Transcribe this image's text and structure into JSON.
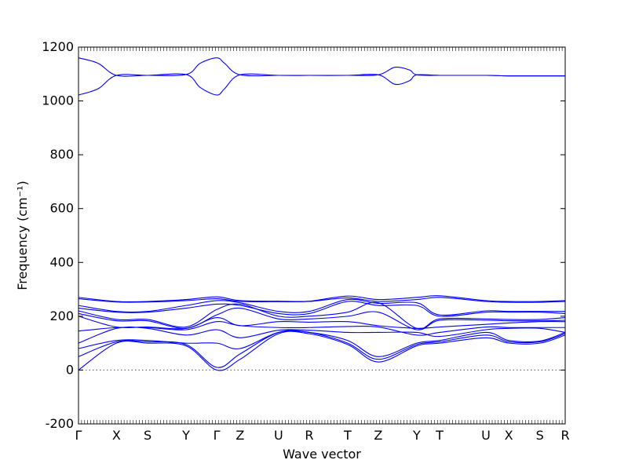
{
  "chart_data": {
    "type": "line",
    "xlabel": "Wave vector",
    "ylabel": "Frequency (cm⁻¹)",
    "ylim": [
      -200,
      1200
    ],
    "yticks": [
      -200,
      0,
      200,
      400,
      600,
      800,
      1000,
      1200
    ],
    "xlim": [
      0,
      1
    ],
    "grid": false,
    "zero_line": true,
    "line_color": "#0000ff",
    "high_points": [
      "Γ",
      "X",
      "S",
      "Y",
      "Γ",
      "Z",
      "U",
      "R",
      "T",
      "Z",
      "Y",
      "T",
      "U",
      "X",
      "S",
      "R"
    ],
    "high_point_positions": [
      0,
      0.078,
      0.142,
      0.221,
      0.284,
      0.332,
      0.411,
      0.474,
      0.553,
      0.616,
      0.695,
      0.742,
      0.837,
      0.884,
      0.948,
      1.0
    ],
    "series": [
      {
        "x": [
          0,
          0.04,
          0.078,
          0.142,
          0.221,
          0.25,
          0.284,
          0.3,
          0.332,
          0.411,
          0.474,
          0.553,
          0.616,
          0.65,
          0.68,
          0.695,
          0.742,
          0.837,
          0.884,
          0.948,
          1.0
        ],
        "y": [
          1160,
          1140,
          1095,
          1095,
          1098,
          1140,
          1160,
          1140,
          1097,
          1095,
          1095,
          1095,
          1097,
          1125,
          1115,
          1097,
          1095,
          1095,
          1093,
          1093,
          1093
        ]
      },
      {
        "x": [
          0,
          0.04,
          0.078,
          0.142,
          0.221,
          0.25,
          0.284,
          0.3,
          0.332,
          0.411,
          0.474,
          0.553,
          0.616,
          0.65,
          0.68,
          0.695,
          0.742,
          0.837,
          0.884,
          0.948,
          1.0
        ],
        "y": [
          1022,
          1045,
          1095,
          1095,
          1098,
          1050,
          1022,
          1045,
          1097,
          1095,
          1095,
          1095,
          1097,
          1062,
          1075,
          1097,
          1095,
          1095,
          1093,
          1093,
          1093
        ]
      },
      {
        "x": [
          0,
          0.078,
          0.142,
          0.221,
          0.284,
          0.332,
          0.411,
          0.474,
          0.553,
          0.616,
          0.695,
          0.742,
          0.837,
          0.884,
          0.948,
          1.0
        ],
        "y": [
          270,
          255,
          255,
          262,
          272,
          258,
          256,
          256,
          275,
          262,
          270,
          276,
          258,
          255,
          255,
          258
        ]
      },
      {
        "x": [
          0,
          0.078,
          0.142,
          0.221,
          0.284,
          0.332,
          0.411,
          0.474,
          0.553,
          0.616,
          0.695,
          0.742,
          0.837,
          0.884,
          0.948,
          1.0
        ],
        "y": [
          265,
          253,
          253,
          258,
          265,
          255,
          254,
          255,
          268,
          255,
          262,
          270,
          255,
          252,
          252,
          255
        ]
      },
      {
        "x": [
          0,
          0.078,
          0.142,
          0.221,
          0.284,
          0.332,
          0.411,
          0.474,
          0.553,
          0.616,
          0.695,
          0.742,
          0.837,
          0.884,
          0.948,
          1.0
        ],
        "y": [
          240,
          218,
          218,
          240,
          258,
          250,
          218,
          218,
          262,
          248,
          250,
          205,
          220,
          218,
          218,
          218
        ]
      },
      {
        "x": [
          0,
          0.078,
          0.142,
          0.221,
          0.284,
          0.332,
          0.411,
          0.474,
          0.553,
          0.616,
          0.695,
          0.742,
          0.837,
          0.884,
          0.948,
          1.0
        ],
        "y": [
          230,
          215,
          215,
          230,
          245,
          240,
          210,
          210,
          255,
          240,
          240,
          200,
          215,
          215,
          215,
          210
        ]
      },
      {
        "x": [
          0,
          0.078,
          0.142,
          0.221,
          0.284,
          0.332,
          0.411,
          0.474,
          0.553,
          0.616,
          0.695,
          0.742,
          0.837,
          0.884,
          0.948,
          1.0
        ],
        "y": [
          220,
          188,
          188,
          160,
          225,
          245,
          200,
          200,
          215,
          250,
          155,
          190,
          190,
          188,
          188,
          195
        ]
      },
      {
        "x": [
          0,
          0.078,
          0.142,
          0.221,
          0.284,
          0.332,
          0.411,
          0.474,
          0.553,
          0.616,
          0.695,
          0.742,
          0.837,
          0.884,
          0.948,
          1.0
        ],
        "y": [
          210,
          183,
          183,
          155,
          205,
          230,
          190,
          190,
          200,
          215,
          150,
          185,
          185,
          183,
          183,
          185
        ]
      },
      {
        "x": [
          0,
          0.078,
          0.142,
          0.221,
          0.284,
          0.332,
          0.411,
          0.474,
          0.553,
          0.616,
          0.695,
          0.742,
          0.837,
          0.884,
          0.948,
          1.0
        ],
        "y": [
          200,
          160,
          160,
          155,
          195,
          165,
          180,
          178,
          180,
          165,
          155,
          160,
          170,
          175,
          180,
          180
        ]
      },
      {
        "x": [
          0,
          0.078,
          0.142,
          0.221,
          0.284,
          0.332,
          0.411,
          0.474,
          0.553,
          0.616,
          0.695,
          0.742,
          0.837,
          0.884,
          0.948,
          1.0
        ],
        "y": [
          145,
          158,
          158,
          150,
          180,
          165,
          158,
          158,
          162,
          160,
          130,
          140,
          160,
          158,
          158,
          158
        ]
      },
      {
        "x": [
          0,
          0.078,
          0.142,
          0.221,
          0.284,
          0.332,
          0.411,
          0.474,
          0.553,
          0.616,
          0.695,
          0.742,
          0.837,
          0.884,
          0.948,
          1.0
        ],
        "y": [
          100,
          155,
          155,
          130,
          150,
          120,
          148,
          148,
          140,
          140,
          140,
          125,
          150,
          155,
          155,
          140
        ]
      },
      {
        "x": [
          0,
          0.078,
          0.142,
          0.221,
          0.284,
          0.332,
          0.411,
          0.474,
          0.553,
          0.616,
          0.695,
          0.742,
          0.837,
          0.884,
          0.948,
          1.0
        ],
        "y": [
          80,
          110,
          110,
          100,
          100,
          80,
          140,
          140,
          110,
          50,
          100,
          110,
          140,
          110,
          108,
          140
        ]
      },
      {
        "x": [
          0,
          0.078,
          0.142,
          0.221,
          0.284,
          0.332,
          0.411,
          0.474,
          0.553,
          0.616,
          0.695,
          0.742,
          0.837,
          0.884,
          0.948,
          1.0
        ],
        "y": [
          50,
          105,
          105,
          95,
          10,
          60,
          140,
          140,
          100,
          40,
          95,
          105,
          130,
          105,
          105,
          135
        ]
      },
      {
        "x": [
          0,
          0.078,
          0.142,
          0.221,
          0.284,
          0.332,
          0.411,
          0.474,
          0.553,
          0.616,
          0.695,
          0.742,
          0.837,
          0.884,
          0.948,
          1.0
        ],
        "y": [
          0,
          100,
          100,
          90,
          0,
          40,
          135,
          135,
          95,
          30,
          90,
          100,
          120,
          100,
          100,
          130
        ]
      }
    ]
  }
}
